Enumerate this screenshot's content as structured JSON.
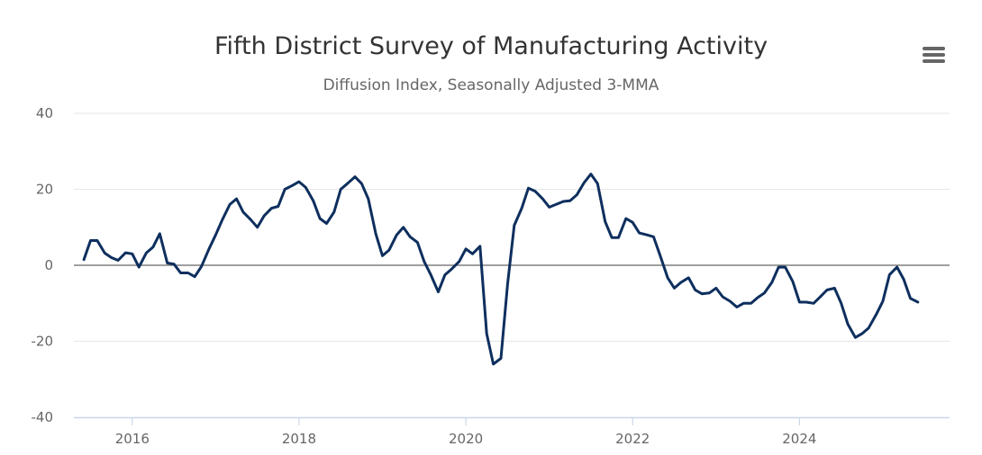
{
  "header": {
    "title": "Fifth District Survey of Manufacturing Activity",
    "subtitle": "Diffusion Index, Seasonally Adjusted 3-MMA"
  },
  "menu": {
    "icon": "hamburger-menu-icon"
  },
  "chart_data": {
    "type": "line",
    "title": "Fifth District Survey of Manufacturing Activity",
    "subtitle": "Diffusion Index, Seasonally Adjusted 3-MMA",
    "xlabel": "",
    "ylabel": "",
    "ylim": [
      -40,
      40
    ],
    "xlim": [
      2015.3,
      2025.8
    ],
    "yticks": [
      40,
      20,
      0,
      -20,
      -40
    ],
    "xticks": [
      2016,
      2018,
      2020,
      2022,
      2024
    ],
    "xtick_labels": [
      "2016",
      "2018",
      "2020",
      "2022",
      "2024"
    ],
    "ytick_labels": [
      "40",
      "20",
      "0",
      "-20",
      "-40"
    ],
    "grid": true,
    "legend": "none",
    "colors": {
      "line": "#0e2f5e",
      "grid": "#e6e6e6",
      "zero": "#666666",
      "axis": "#ccd6eb"
    },
    "series": [
      {
        "x": [
          2015.42,
          2015.5,
          2015.58,
          2015.67,
          2015.75,
          2015.83,
          2015.92,
          2016.0,
          2016.08,
          2016.17,
          2016.25,
          2016.33,
          2016.42,
          2016.5,
          2016.58,
          2016.67,
          2016.75,
          2016.83,
          2016.92,
          2017.0,
          2017.08,
          2017.17,
          2017.25,
          2017.33,
          2017.42,
          2017.5,
          2017.58,
          2017.67,
          2017.75,
          2017.83,
          2017.92,
          2018.0,
          2018.08,
          2018.17,
          2018.25,
          2018.33,
          2018.42,
          2018.5,
          2018.58,
          2018.67,
          2018.75,
          2018.83,
          2018.92,
          2019.0,
          2019.08,
          2019.17,
          2019.25,
          2019.33,
          2019.42,
          2019.5,
          2019.58,
          2019.67,
          2019.75,
          2019.83,
          2019.92,
          2020.0,
          2020.08,
          2020.17,
          2020.25,
          2020.33,
          2020.42,
          2020.5,
          2020.58,
          2020.67,
          2020.75,
          2020.83,
          2020.92,
          2021.0,
          2021.08,
          2021.17,
          2021.25,
          2021.33,
          2021.42,
          2021.5,
          2021.58,
          2021.67,
          2021.75,
          2021.83,
          2021.92,
          2022.0,
          2022.08,
          2022.17,
          2022.25,
          2022.33,
          2022.42,
          2022.5,
          2022.58,
          2022.67,
          2022.75,
          2022.83,
          2022.92,
          2023.0,
          2023.08,
          2023.17,
          2023.25,
          2023.33,
          2023.42,
          2023.5,
          2023.58,
          2023.67,
          2023.75,
          2023.83,
          2023.92,
          2024.0,
          2024.08,
          2024.17,
          2024.25,
          2024.33,
          2024.42,
          2024.5,
          2024.58,
          2024.67,
          2024.75,
          2024.83,
          2024.92,
          2025.0,
          2025.08,
          2025.17,
          2025.25,
          2025.33,
          2025.42
        ],
        "values": [
          1.5,
          6.5,
          6.5,
          3.2,
          2.0,
          1.3,
          3.3,
          3.0,
          -0.5,
          3.3,
          4.8,
          8.3,
          0.6,
          0.3,
          -2.0,
          -2.0,
          -3.0,
          -0.3,
          4.3,
          8.0,
          12.0,
          16.0,
          17.5,
          14.0,
          12.0,
          10.0,
          13.0,
          15.0,
          15.5,
          20.0,
          21.0,
          22.0,
          20.5,
          17.0,
          12.3,
          11.0,
          14.0,
          20.0,
          21.5,
          23.3,
          21.5,
          17.5,
          8.3,
          2.5,
          4.0,
          8.0,
          10.0,
          7.5,
          6.0,
          1.0,
          -2.5,
          -7.0,
          -2.5,
          -1.0,
          1.0,
          4.3,
          3.0,
          5.0,
          -18.0,
          -26.0,
          -24.5,
          -5.0,
          10.5,
          15.0,
          20.3,
          19.5,
          17.5,
          15.3,
          16.0,
          16.8,
          17.0,
          18.5,
          21.8,
          24.0,
          21.5,
          11.5,
          7.3,
          7.3,
          12.3,
          11.3,
          8.5,
          8.0,
          7.5,
          2.5,
          -3.3,
          -6.0,
          -4.5,
          -3.3,
          -6.5,
          -7.5,
          -7.3,
          -6.0,
          -8.3,
          -9.5,
          -11.0,
          -10.0,
          -10.0,
          -8.5,
          -7.3,
          -4.5,
          -0.5,
          -0.5,
          -4.3,
          -9.7,
          -9.7,
          -10.0,
          -8.3,
          -6.5,
          -6.0,
          -10.0,
          -15.5,
          -19.0,
          -18.0,
          -16.5,
          -13.0,
          -9.5,
          -2.5,
          -0.5,
          -3.7,
          -8.7,
          -9.7
        ]
      }
    ]
  }
}
